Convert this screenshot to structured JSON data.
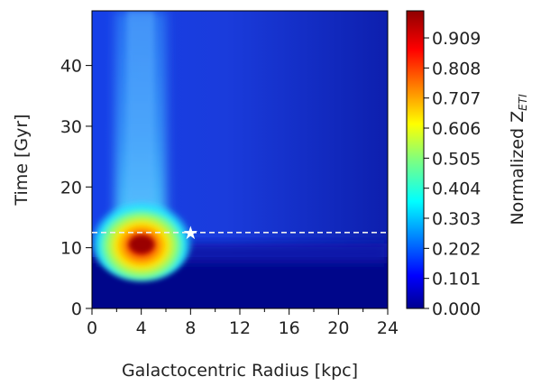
{
  "chart_data": {
    "type": "heatmap",
    "title": "",
    "xlabel": "Galactocentric Radius [kpc]",
    "ylabel": "Time [Gyr]",
    "xlim": [
      0,
      24
    ],
    "ylim": [
      0,
      49
    ],
    "x_ticks": [
      0,
      4,
      8,
      12,
      16,
      20,
      24
    ],
    "y_ticks": [
      0,
      10,
      20,
      30,
      40
    ],
    "colorbar": {
      "label": "Normalized Z",
      "label_subscript": "ETI",
      "colormap": "jet",
      "range": [
        0,
        1
      ],
      "ticks": [
        "0.000",
        "0.101",
        "0.202",
        "0.303",
        "0.404",
        "0.505",
        "0.606",
        "0.707",
        "0.808",
        "0.909"
      ]
    },
    "peak": {
      "radius": 4,
      "time": 10,
      "value": 1.0
    },
    "reference_line": {
      "time": 12.5,
      "style": "dashed",
      "color": "#eeeeee"
    },
    "sun_marker": {
      "radius": 8,
      "time": 12.5,
      "symbol": "star"
    }
  }
}
